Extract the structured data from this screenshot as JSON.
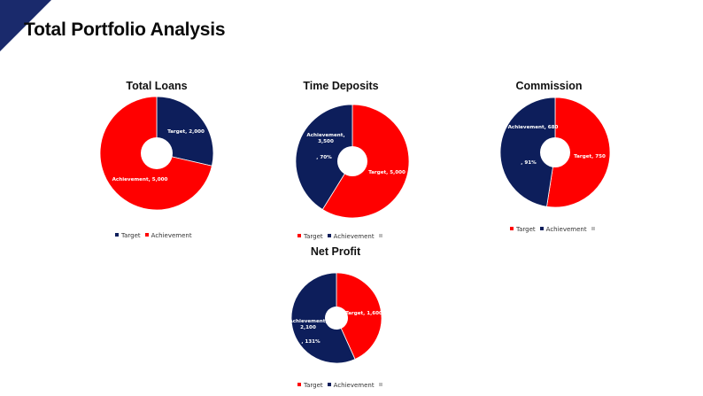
{
  "page": {
    "title": "Total Portfolio Analysis"
  },
  "colors": {
    "target_navy": "#0d1e5b",
    "achievement_red": "#ff0000",
    "corner_navy": "#1a2a6c",
    "legend_grey": "#bfbfbf"
  },
  "chart_data": [
    {
      "type": "pie",
      "variant": "donut",
      "title": "Total Loans",
      "series": [
        {
          "name": "Target",
          "value": 2000
        },
        {
          "name": "Achievement",
          "value": 5000
        }
      ],
      "labels": [
        {
          "series": "Target",
          "lines": [
            "Target, 2,000"
          ]
        },
        {
          "series": "Achievement",
          "lines": [
            "Achievement, 5,000"
          ]
        }
      ],
      "legend": [
        {
          "name": "Target",
          "color": "#0d1e5b"
        },
        {
          "name": "Achievement",
          "color": "#ff0000"
        }
      ],
      "legend_position": "bottom"
    },
    {
      "type": "pie",
      "variant": "donut",
      "title": "Time Deposits",
      "series": [
        {
          "name": "Target",
          "value": 5000
        },
        {
          "name": "Achievement",
          "value": 3500
        }
      ],
      "labels": [
        {
          "series": "Target",
          "lines": [
            "Target, 5,000"
          ]
        },
        {
          "series": "Achievement",
          "lines": [
            "Achievement,",
            "3,500"
          ]
        },
        {
          "series": "Achievement",
          "lines": [
            ", 70%"
          ]
        }
      ],
      "legend": [
        {
          "name": "Target",
          "color": "#ff0000"
        },
        {
          "name": "Achievement",
          "color": "#0d1e5b"
        },
        {
          "name": "",
          "color": "#bfbfbf"
        }
      ],
      "legend_position": "bottom"
    },
    {
      "type": "pie",
      "variant": "donut",
      "title": "Commission",
      "series": [
        {
          "name": "Target",
          "value": 750
        },
        {
          "name": "Achievement",
          "value": 680
        }
      ],
      "labels": [
        {
          "series": "Target",
          "lines": [
            "Target, 750"
          ]
        },
        {
          "series": "Achievement",
          "lines": [
            "Achievement, 680"
          ]
        },
        {
          "series": "Achievement",
          "lines": [
            ", 91%"
          ]
        }
      ],
      "legend": [
        {
          "name": "Target",
          "color": "#ff0000"
        },
        {
          "name": "Achievement",
          "color": "#0d1e5b"
        },
        {
          "name": "",
          "color": "#bfbfbf"
        }
      ],
      "legend_position": "bottom"
    },
    {
      "type": "pie",
      "variant": "donut",
      "title": "Net Profit",
      "series": [
        {
          "name": "Target",
          "value": 1600
        },
        {
          "name": "Achievement",
          "value": 2100
        }
      ],
      "labels": [
        {
          "series": "Target",
          "lines": [
            "Target, 1,600"
          ]
        },
        {
          "series": "Achievement",
          "lines": [
            "Achievement,",
            "2,100"
          ]
        },
        {
          "series": "Achievement",
          "lines": [
            ", 131%"
          ]
        }
      ],
      "legend": [
        {
          "name": "Target",
          "color": "#ff0000"
        },
        {
          "name": "Achievement",
          "color": "#0d1e5b"
        },
        {
          "name": "",
          "color": "#bfbfbf"
        }
      ],
      "legend_position": "bottom"
    }
  ]
}
